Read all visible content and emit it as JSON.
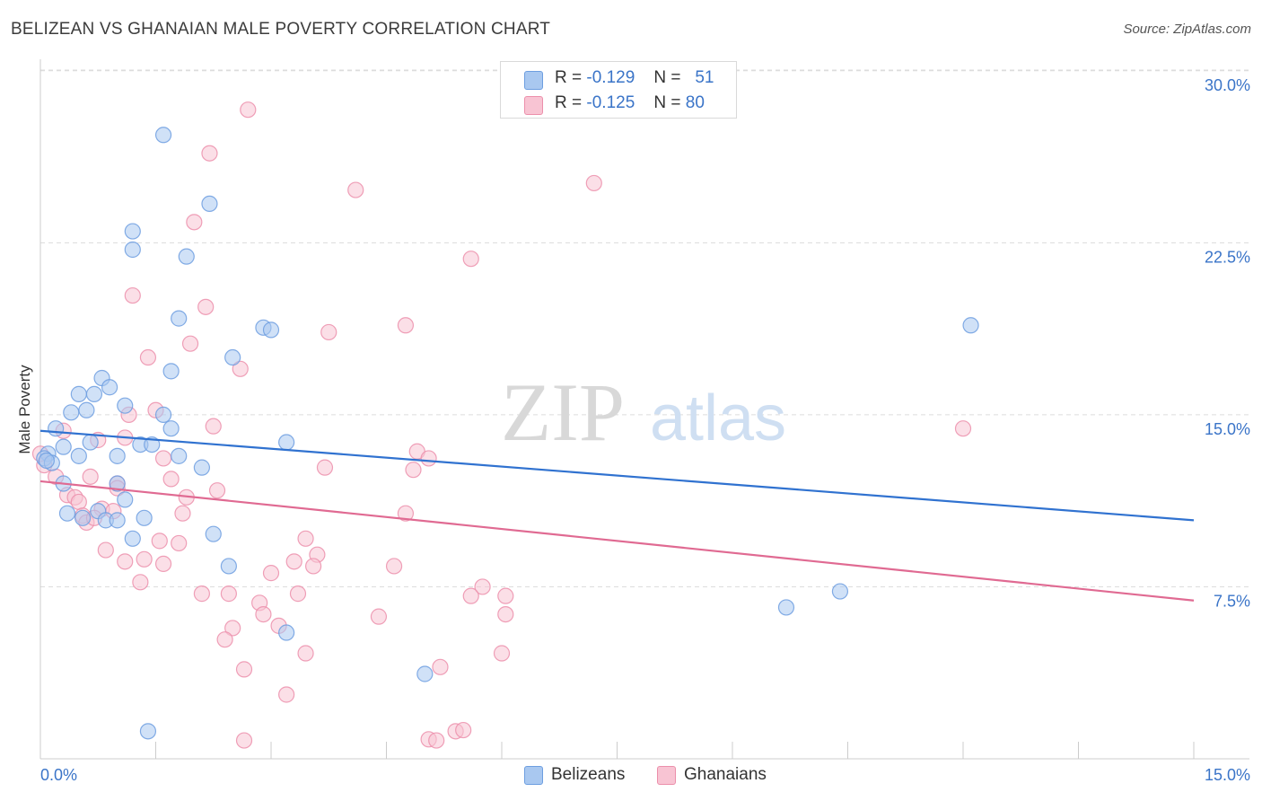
{
  "title": "BELIZEAN VS GHANAIAN MALE POVERTY CORRELATION CHART",
  "source": "Source: ZipAtlas.com",
  "watermark": {
    "zip": "ZIP",
    "atlas": "atlas"
  },
  "legend": {
    "rows": [
      {
        "r_label": "R =",
        "r_value": "-0.129",
        "n_label": "N =",
        "n_value": "51",
        "color": "#a9c8f0",
        "border": "#6d9ee0"
      },
      {
        "r_label": "R =",
        "r_value": "-0.125",
        "n_label": "N =",
        "n_value": "80",
        "color": "#f8c4d3",
        "border": "#ec8fab"
      }
    ]
  },
  "bottom_legend": [
    {
      "label": "Belizeans",
      "color": "#a9c8f0",
      "border": "#6d9ee0"
    },
    {
      "label": "Ghanaians",
      "color": "#f8c4d3",
      "border": "#ec8fab"
    }
  ],
  "chart_data": {
    "type": "scatter",
    "title": "BELIZEAN VS GHANAIAN MALE POVERTY CORRELATION CHART",
    "xlabel": "",
    "ylabel": "Male Poverty",
    "xlim": [
      0,
      15
    ],
    "ylim": [
      0,
      30.5
    ],
    "x_tick_labels": [
      "0.0%",
      "15.0%"
    ],
    "y_ticks": [
      7.5,
      15,
      22.5,
      30
    ],
    "y_tick_labels": [
      "7.5%",
      "15.0%",
      "22.5%",
      "30.0%"
    ],
    "grid": true,
    "legend_position": "top-center",
    "series": [
      {
        "name": "Belizeans",
        "color": "#6d9ee0",
        "fill": "#a9c8f0",
        "line_color": "#3072d0",
        "trend": {
          "x": [
            0,
            15
          ],
          "y": [
            14.3,
            10.4
          ]
        },
        "points": [
          [
            1.6,
            27.2
          ],
          [
            2.2,
            24.2
          ],
          [
            1.2,
            23.0
          ],
          [
            1.2,
            22.2
          ],
          [
            1.9,
            21.9
          ],
          [
            1.8,
            19.2
          ],
          [
            2.9,
            18.8
          ],
          [
            3.0,
            18.7
          ],
          [
            12.1,
            18.9
          ],
          [
            2.5,
            17.5
          ],
          [
            1.7,
            16.9
          ],
          [
            0.8,
            16.6
          ],
          [
            0.9,
            16.2
          ],
          [
            0.5,
            15.9
          ],
          [
            0.7,
            15.9
          ],
          [
            1.1,
            15.4
          ],
          [
            0.6,
            15.2
          ],
          [
            0.4,
            15.1
          ],
          [
            1.6,
            15.0
          ],
          [
            0.2,
            14.4
          ],
          [
            1.7,
            14.4
          ],
          [
            0.3,
            13.6
          ],
          [
            0.65,
            13.8
          ],
          [
            1.3,
            13.7
          ],
          [
            1.45,
            13.7
          ],
          [
            3.2,
            13.8
          ],
          [
            0.1,
            13.3
          ],
          [
            0.05,
            13.1
          ],
          [
            0.15,
            12.9
          ],
          [
            0.5,
            13.2
          ],
          [
            1.0,
            13.2
          ],
          [
            1.8,
            13.2
          ],
          [
            2.1,
            12.7
          ],
          [
            0.3,
            12.0
          ],
          [
            1.0,
            12.0
          ],
          [
            1.1,
            11.3
          ],
          [
            0.35,
            10.7
          ],
          [
            0.55,
            10.5
          ],
          [
            0.75,
            10.8
          ],
          [
            0.85,
            10.4
          ],
          [
            1.0,
            10.4
          ],
          [
            1.35,
            10.5
          ],
          [
            1.2,
            9.6
          ],
          [
            2.25,
            9.8
          ],
          [
            2.45,
            8.4
          ],
          [
            3.2,
            5.5
          ],
          [
            10.4,
            7.3
          ],
          [
            9.7,
            6.6
          ],
          [
            5.0,
            3.7
          ],
          [
            1.4,
            1.2
          ],
          [
            0.08,
            13.0
          ]
        ]
      },
      {
        "name": "Ghanaians",
        "color": "#ec8fab",
        "fill": "#f8c4d3",
        "line_color": "#e06a92",
        "trend": {
          "x": [
            0,
            15
          ],
          "y": [
            12.1,
            6.9
          ]
        },
        "points": [
          [
            2.7,
            28.3
          ],
          [
            2.2,
            26.4
          ],
          [
            4.1,
            24.8
          ],
          [
            7.2,
            25.1
          ],
          [
            2.0,
            23.4
          ],
          [
            5.6,
            21.8
          ],
          [
            1.2,
            20.2
          ],
          [
            2.15,
            19.7
          ],
          [
            4.75,
            18.9
          ],
          [
            3.75,
            18.6
          ],
          [
            1.95,
            18.1
          ],
          [
            1.4,
            17.5
          ],
          [
            2.6,
            17.0
          ],
          [
            1.15,
            15.0
          ],
          [
            1.5,
            15.2
          ],
          [
            2.25,
            14.5
          ],
          [
            0.3,
            14.3
          ],
          [
            12.0,
            14.4
          ],
          [
            0.75,
            13.9
          ],
          [
            1.1,
            14.0
          ],
          [
            4.9,
            13.4
          ],
          [
            5.05,
            13.1
          ],
          [
            3.7,
            12.7
          ],
          [
            4.85,
            12.6
          ],
          [
            1.6,
            13.1
          ],
          [
            0.05,
            12.8
          ],
          [
            0.2,
            12.3
          ],
          [
            0.65,
            12.3
          ],
          [
            1.7,
            12.2
          ],
          [
            1.0,
            12.0
          ],
          [
            2.3,
            11.7
          ],
          [
            0.35,
            11.5
          ],
          [
            0.45,
            11.4
          ],
          [
            0.5,
            11.2
          ],
          [
            1.9,
            11.4
          ],
          [
            1.0,
            11.8
          ],
          [
            0.8,
            10.9
          ],
          [
            0.95,
            10.8
          ],
          [
            1.85,
            10.7
          ],
          [
            4.75,
            10.7
          ],
          [
            0.55,
            10.6
          ],
          [
            0.6,
            10.3
          ],
          [
            0.7,
            10.5
          ],
          [
            1.55,
            9.5
          ],
          [
            1.8,
            9.4
          ],
          [
            3.45,
            9.6
          ],
          [
            0.85,
            9.1
          ],
          [
            3.6,
            8.9
          ],
          [
            1.35,
            8.7
          ],
          [
            1.1,
            8.6
          ],
          [
            1.6,
            8.5
          ],
          [
            3.3,
            8.6
          ],
          [
            3.55,
            8.4
          ],
          [
            4.6,
            8.4
          ],
          [
            3.0,
            8.1
          ],
          [
            1.3,
            7.7
          ],
          [
            2.1,
            7.2
          ],
          [
            2.45,
            7.2
          ],
          [
            3.35,
            7.2
          ],
          [
            5.75,
            7.5
          ],
          [
            5.6,
            7.1
          ],
          [
            6.05,
            7.1
          ],
          [
            2.85,
            6.8
          ],
          [
            2.9,
            6.3
          ],
          [
            4.4,
            6.2
          ],
          [
            6.05,
            6.3
          ],
          [
            3.1,
            5.8
          ],
          [
            2.5,
            5.7
          ],
          [
            2.4,
            5.2
          ],
          [
            3.45,
            4.6
          ],
          [
            6.0,
            4.6
          ],
          [
            2.65,
            3.9
          ],
          [
            5.2,
            4.0
          ],
          [
            3.2,
            2.8
          ],
          [
            2.65,
            0.8
          ],
          [
            5.05,
            0.85
          ],
          [
            5.15,
            0.8
          ],
          [
            5.4,
            1.2
          ],
          [
            5.5,
            1.25
          ],
          [
            0.0,
            13.3
          ]
        ]
      }
    ]
  }
}
